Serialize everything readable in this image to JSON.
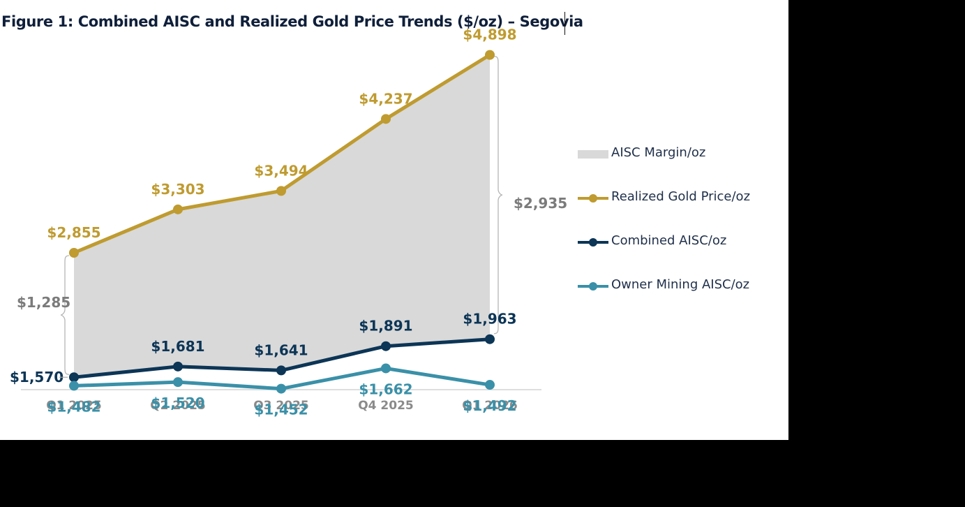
{
  "title": "Figure 1: Combined AISC and Realized Gold Price Trends ($/oz) – Segovia",
  "colors": {
    "gold": "#bf9b30",
    "combined": "#0c3556",
    "owner": "#3a90a8",
    "margin": "#d9d9d9",
    "bracket_label": "#7b7b7b",
    "axis_label": "#8a8a8a"
  },
  "chart_data": {
    "type": "line",
    "categories": [
      "Q1 2025",
      "Q2 2025",
      "Q3 2025",
      "Q4 2025",
      "Q1 2026"
    ],
    "series": [
      {
        "name": "Realized Gold Price/oz",
        "values": [
          2855,
          3303,
          3494,
          4237,
          4898
        ],
        "labels": [
          "$2,855",
          "$3,303",
          "$3,494",
          "$4,237",
          "$4,898"
        ]
      },
      {
        "name": "Combined AISC/oz",
        "values": [
          1570,
          1681,
          1641,
          1891,
          1963
        ],
        "labels": [
          "$1,570",
          "$1,681",
          "$1,641",
          "$1,891",
          "$1,963"
        ]
      },
      {
        "name": "Owner Mining AISC/oz",
        "values": [
          1482,
          1520,
          1452,
          1662,
          1492
        ],
        "labels": [
          "$1,482",
          "$1,520",
          "$1,452",
          "$1,662",
          "$1,492"
        ]
      }
    ],
    "area": {
      "name": "AISC Margin/oz",
      "between": [
        "Combined AISC/oz",
        "Realized Gold Price/oz"
      ]
    },
    "margin_annotations": [
      {
        "category": "Q1 2025",
        "value": 1285,
        "label": "$1,285"
      },
      {
        "category": "Q1 2026",
        "value": 2935,
        "label": "$2,935"
      }
    ],
    "legend": [
      "AISC Margin/oz",
      "Realized Gold Price/oz",
      "Combined AISC/oz",
      "Owner Mining AISC/oz"
    ],
    "legend_position": "right",
    "grid": false,
    "y_axis_visible": false
  }
}
